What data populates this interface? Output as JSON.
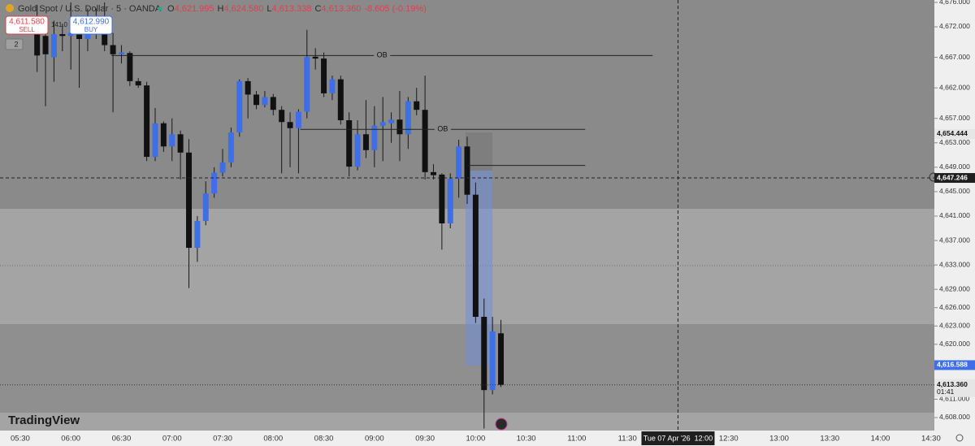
{
  "header": {
    "symbol": "Gold Spot / U.S. Dollar · 5 · OANDA",
    "open_label": "O",
    "open": "4,621.995",
    "high_label": "H",
    "high": "4,624.580",
    "low_label": "L",
    "low": "4,613.338",
    "close_label": "C",
    "close": "4,613.360",
    "change": "-8.605 (-0.19%)"
  },
  "trade": {
    "sell_price": "4,611.580",
    "sell": "SELL",
    "spread": "141.0",
    "buy_price": "4,612.990",
    "buy": "BUY",
    "indicators": "2"
  },
  "brand": "TradingView",
  "chart_data": {
    "type": "candlestick",
    "x": [
      "05:40",
      "05:45",
      "05:50",
      "05:55",
      "06:00",
      "06:05",
      "06:10",
      "06:15",
      "06:20",
      "06:25",
      "06:30",
      "06:35",
      "06:40",
      "06:45",
      "06:50",
      "06:55",
      "07:00",
      "07:05",
      "07:10",
      "07:15",
      "07:20",
      "07:25",
      "07:30",
      "07:35",
      "07:40",
      "07:45",
      "07:50",
      "07:55",
      "08:00",
      "08:05",
      "08:10",
      "08:15",
      "08:20",
      "08:25",
      "08:30",
      "08:35",
      "08:40",
      "08:45",
      "08:50",
      "08:55",
      "09:00",
      "09:05",
      "09:10",
      "09:15",
      "09:20",
      "09:25",
      "09:30",
      "09:35",
      "09:40",
      "09:45",
      "09:50",
      "09:55",
      "10:00",
      "10:05",
      "10:10",
      "10:15"
    ],
    "open": [
      4673.7,
      4670.5,
      4667,
      4670.8,
      4670.5,
      4671,
      4670,
      4672,
      4673,
      4669,
      4667.5,
      4667.7,
      4663.1,
      4662.4,
      4650.7,
      4656.2,
      4652.4,
      4654.4,
      4651.4,
      4635.8,
      4640.2,
      4644.7,
      4648.1,
      4649.8,
      4654.7,
      4663.1,
      4660.9,
      4659.2,
      4660.5,
      4658.4,
      4656.4,
      4655.4,
      4658.1,
      4667.1,
      4666.8,
      4661.1,
      4663.4,
      4656.7,
      4649.1,
      4654.4,
      4651.8,
      4655.8,
      4656.2,
      4656.8,
      4654.4,
      4659.8,
      4658.4,
      4648.2,
      4647.8,
      4639.8,
      4647.1,
      4652.4,
      4644.5,
      4624.5,
      4612.5,
      4621.8
    ],
    "high": [
      4675.6,
      4672,
      4673,
      4672.5,
      4676,
      4671.5,
      4675,
      4675,
      4676,
      4671,
      4669,
      4668,
      4663.6,
      4663,
      4658.7,
      4656.5,
      4657,
      4655,
      4653.6,
      4641,
      4646.7,
      4649,
      4652,
      4655.5,
      4663.4,
      4663.6,
      4661.5,
      4661.5,
      4661,
      4659,
      4658,
      4658.5,
      4671.5,
      4668.5,
      4667.8,
      4664,
      4664,
      4658,
      4656.7,
      4660,
      4659,
      4660.5,
      4658,
      4661.5,
      4660.5,
      4662,
      4664,
      4649.5,
      4648,
      4648,
      4653.5,
      4654,
      4646.5,
      4627.5,
      4624.5,
      4624
    ],
    "low": [
      4664.6,
      4659,
      4663,
      4668,
      4665,
      4662,
      4668,
      4670,
      4668,
      4658,
      4666,
      4662.3,
      4662,
      4650,
      4650,
      4651.5,
      4650,
      4647,
      4629.2,
      4633.5,
      4639.5,
      4644,
      4647.5,
      4649,
      4654,
      4657,
      4658.5,
      4658.8,
      4657.5,
      4648,
      4649,
      4648,
      4657,
      4665,
      4660.5,
      4660,
      4656,
      4647.5,
      4648.5,
      4650.5,
      4649,
      4650,
      4653,
      4650,
      4652,
      4657.5,
      4647,
      4647,
      4635.5,
      4639,
      4644,
      4643,
      4623.5,
      4606.2,
      4611.8,
      4613
    ],
    "close": [
      4667.3,
      4667.5,
      4670.8,
      4670.5,
      4671,
      4670,
      4672,
      4673,
      4669,
      4667.5,
      4667.8,
      4663.1,
      4662.4,
      4650.7,
      4656.2,
      4652.4,
      4654.4,
      4651.4,
      4635.8,
      4640.2,
      4644.7,
      4648.1,
      4649.8,
      4654.7,
      4663.1,
      4660.9,
      4659.2,
      4660.5,
      4658.4,
      4656.4,
      4655.4,
      4658.1,
      4667.1,
      4666.8,
      4661.1,
      4663.4,
      4656.7,
      4649.1,
      4654.4,
      4651.8,
      4655.8,
      4656.4,
      4656.8,
      4654.4,
      4659.8,
      4658.4,
      4648.2,
      4647.7,
      4639.8,
      4647.1,
      4652.4,
      4644.5,
      4624.5,
      4612.5,
      4622.1,
      4613.36
    ],
    "up_color": "#3f6fe6",
    "down_color": "#111111",
    "xlim": [
      "05:18",
      "14:32"
    ],
    "ylim": [
      4605.87,
      4676.39
    ],
    "xticks": [
      "05:30",
      "06:00",
      "06:30",
      "07:00",
      "07:30",
      "08:00",
      "08:30",
      "09:00",
      "09:30",
      "10:00",
      "10:30",
      "11:00",
      "11:30",
      "12:30",
      "13:00",
      "13:30",
      "14:00",
      "14:30"
    ],
    "yticks": [
      {
        "value": 4676,
        "label": "4,676.000"
      },
      {
        "value": 4672,
        "label": "4,672.000"
      },
      {
        "value": 4667,
        "label": "4,667.000"
      },
      {
        "value": 4662,
        "label": "4,662.000"
      },
      {
        "value": 4657,
        "label": "4,657.000"
      },
      {
        "value": 4653,
        "label": "4,653.000"
      },
      {
        "value": 4649,
        "label": "4,649.000"
      },
      {
        "value": 4645,
        "label": "4,645.000"
      },
      {
        "value": 4641,
        "label": "4,641.000"
      },
      {
        "value": 4637,
        "label": "4,637.000"
      },
      {
        "value": 4633,
        "label": "4,633.000"
      },
      {
        "value": 4629,
        "label": "4,629.000"
      },
      {
        "value": 4626,
        "label": "4,626.000"
      },
      {
        "value": 4623,
        "label": "4,623.000"
      },
      {
        "value": 4620,
        "label": "4,620.000"
      },
      {
        "value": 4611,
        "label": "4,611.000"
      },
      {
        "value": 4608,
        "label": "4,608.000"
      }
    ],
    "price_labels": [
      {
        "value": 4654.444,
        "label": "4,654.444",
        "color": "#e6e6e6"
      },
      {
        "value": 4616.588,
        "label": "4,616.588",
        "color": "#3f6fe6"
      }
    ],
    "last_price": {
      "value": 4613.36,
      "label": "4,613.360",
      "countdown": "01:41",
      "color": "#e6e6e6"
    },
    "crosshair": {
      "x": "12:00",
      "x_label": "Tue 07 Apr '26  12:00",
      "y": 4647.246,
      "y_label": "4,647.246"
    },
    "ob_lines": [
      {
        "label": "OB",
        "y": 4667.3,
        "x0": "06:24",
        "x1": "11:45"
      },
      {
        "label": "OB",
        "y": 4655.2,
        "x0": "08:16",
        "x1": "11:05"
      },
      {
        "y": 4649.3,
        "x0": "09:55",
        "x1": "11:05"
      }
    ]
  }
}
